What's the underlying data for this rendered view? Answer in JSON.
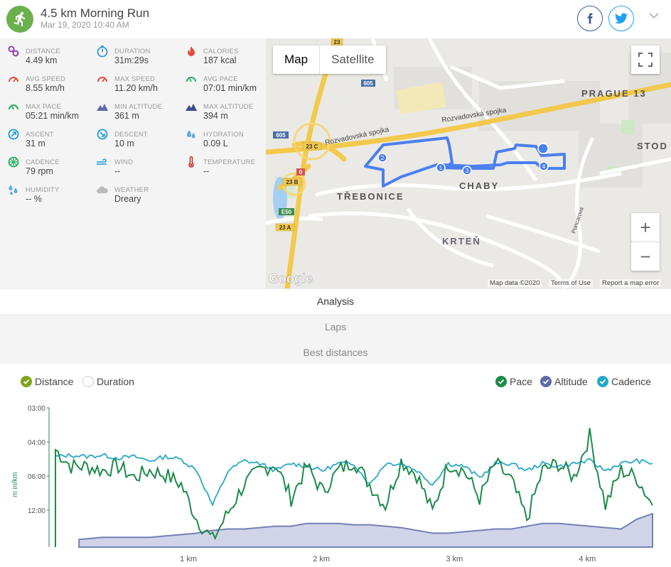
{
  "header": {
    "title": "4.5 km Morning Run",
    "date": "Mar 19, 2020 10:40 AM",
    "icon": "runner-icon"
  },
  "stats": [
    {
      "label": "DISTANCE",
      "value": "4.49 km",
      "icon": "route-icon",
      "color": "#8e44ad"
    },
    {
      "label": "DURATION",
      "value": "31m:29s",
      "icon": "stopwatch-icon",
      "color": "#3498db"
    },
    {
      "label": "CALORIES",
      "value": "187 kcal",
      "icon": "flame-icon",
      "color": "#e74c3c"
    },
    {
      "label": "AVG SPEED",
      "value": "8.55 km/h",
      "icon": "speedometer-icon",
      "color": "#e74c3c"
    },
    {
      "label": "MAX SPEED",
      "value": "11.20 km/h",
      "icon": "speedometer-icon",
      "color": "#e74c3c"
    },
    {
      "label": "AVG PACE",
      "value": "07:01 min/km",
      "icon": "pace-gauge-icon",
      "color": "#27ae60"
    },
    {
      "label": "MAX PACE",
      "value": "05:21 min/km",
      "icon": "pace-gauge-icon",
      "color": "#27ae60"
    },
    {
      "label": "MIN ALTITUDE",
      "value": "361 m",
      "icon": "mountain-icon",
      "color": "#5b6aa8"
    },
    {
      "label": "MAX ALTITUDE",
      "value": "394 m",
      "icon": "mountain-icon",
      "color": "#3e4a8a"
    },
    {
      "label": "ASCENT",
      "value": "31 m",
      "icon": "ascent-icon",
      "color": "#1a9bd7"
    },
    {
      "label": "DESCENT",
      "value": "10 m",
      "icon": "descent-icon",
      "color": "#1a9bd7"
    },
    {
      "label": "HYDRATION",
      "value": "0.09 L",
      "icon": "drops-icon",
      "color": "#5dade2"
    },
    {
      "label": "CADENCE",
      "value": "79 rpm",
      "icon": "cadence-wheel-icon",
      "color": "#27ae60"
    },
    {
      "label": "WIND",
      "value": "--",
      "icon": "wind-icon",
      "color": "#1a9bd7"
    },
    {
      "label": "TEMPERATURE",
      "value": "--",
      "icon": "thermometer-icon",
      "color": "#c0392b"
    },
    {
      "label": "HUMIDITY",
      "value": "-- %",
      "icon": "humidity-icon",
      "color": "#5dade2"
    },
    {
      "label": "WEATHER",
      "value": "Dreary",
      "icon": "cloud-icon",
      "color": "#bbbbbb"
    }
  ],
  "map": {
    "tab_map": "Map",
    "tab_satellite": "Satellite",
    "places": [
      "PRAGUE 13",
      "STOD",
      "TŘEBONICE",
      "CHABY",
      "KRTEŇ"
    ],
    "roads": [
      "Rozvadovská spojka",
      "Rozvadovská spojka",
      "Poncarova"
    ],
    "road_shields": [
      "23",
      "605",
      "605",
      "23 C",
      "0",
      "23 B",
      "E50",
      "23 A"
    ],
    "markers": [
      "1",
      "2",
      "3",
      "4"
    ],
    "zoom_in": "+",
    "zoom_out": "−",
    "logo": "Google",
    "footer_data": "Map data ©2020",
    "footer_terms": "Terms of Use",
    "footer_report": "Report a map error"
  },
  "tabs": [
    "Analysis",
    "Laps",
    "Best distances"
  ],
  "legend": {
    "distance": "Distance",
    "duration": "Duration",
    "pace": "Pace",
    "altitude": "Altitude",
    "cadence": "Cadence"
  },
  "colors": {
    "pace": "#1e8a4a",
    "altitude": "#5b6aa8",
    "cadence": "#28a8c8",
    "distance_check": "#7fa31c"
  },
  "chart_data": {
    "type": "line",
    "ylabel": "m in/km",
    "y_ticks": [
      "03:00",
      "04:00",
      "06:00",
      "12:00"
    ],
    "x_ticks": [
      "1 km",
      "2 km",
      "3 km",
      "4 km"
    ],
    "x_range_km": [
      0,
      4.49
    ],
    "series": [
      {
        "name": "Pace",
        "level_fraction": [
          0.7,
          0.58,
          0.58,
          0.55,
          0.58,
          0.5,
          0.55,
          0.52,
          0.45,
          0.2,
          0.05,
          0.25,
          0.45,
          0.55,
          0.6,
          0.35,
          0.58,
          0.4,
          0.55,
          0.62,
          0.45,
          0.3,
          0.62,
          0.52,
          0.25,
          0.6,
          0.55,
          0.35,
          0.6,
          0.48,
          0.2,
          0.55,
          0.6,
          0.5,
          0.8,
          0.3,
          0.55,
          0.5,
          0.3
        ]
      },
      {
        "name": "Cadence",
        "level_fraction": [
          0.65,
          0.66,
          0.65,
          0.66,
          0.64,
          0.65,
          0.62,
          0.65,
          0.63,
          0.55,
          0.3,
          0.55,
          0.62,
          0.6,
          0.55,
          0.6,
          0.58,
          0.55,
          0.6,
          0.6,
          0.45,
          0.6,
          0.6,
          0.55,
          0.45,
          0.6,
          0.58,
          0.5,
          0.6,
          0.6,
          0.55,
          0.6,
          0.58,
          0.6,
          0.62,
          0.55,
          0.6,
          0.62,
          0.6
        ]
      },
      {
        "name": "Altitude",
        "level_fraction": [
          0.04,
          0.05,
          0.06,
          0.07,
          0.07,
          0.07,
          0.07,
          0.08,
          0.09,
          0.1,
          0.12,
          0.13,
          0.13,
          0.14,
          0.15,
          0.15,
          0.17,
          0.17,
          0.17,
          0.16,
          0.16,
          0.15,
          0.14,
          0.12,
          0.1,
          0.1,
          0.11,
          0.12,
          0.13,
          0.13,
          0.15,
          0.17,
          0.17,
          0.16,
          0.15,
          0.14,
          0.13,
          0.2,
          0.24
        ]
      }
    ]
  }
}
